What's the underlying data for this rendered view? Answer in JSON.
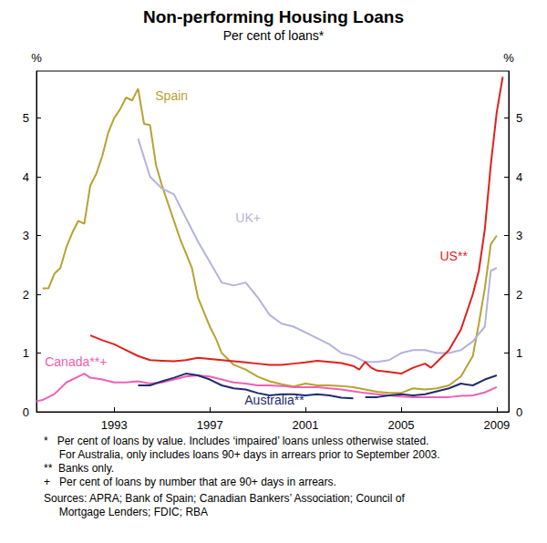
{
  "chart_data": {
    "type": "line",
    "title": "Non-performing Housing Loans",
    "subtitle": "Per cent of loans*",
    "y_label": "%",
    "xlim": [
      1989.75,
      2009.5
    ],
    "xticks": [
      1993,
      1997,
      2001,
      2005,
      2009
    ],
    "ylim": [
      0,
      5.8
    ],
    "yticks": [
      0,
      1,
      2,
      3,
      4,
      5
    ],
    "grid": false,
    "series": [
      {
        "name": "Spain",
        "color": "#b8a232",
        "x": [
          1990,
          1990.25,
          1990.5,
          1990.75,
          1991,
          1991.25,
          1991.5,
          1991.75,
          1992,
          1992.25,
          1992.5,
          1992.75,
          1993,
          1993.25,
          1993.5,
          1993.75,
          1994,
          1994.25,
          1994.5,
          1994.75,
          1995,
          1995.25,
          1995.5,
          1995.75,
          1996,
          1996.25,
          1996.5,
          1996.75,
          1997,
          1997.25,
          1997.5,
          1997.75,
          1998,
          1998.5,
          1999,
          1999.5,
          2000,
          2000.5,
          2001,
          2001.5,
          2002,
          2002.5,
          2003,
          2003.5,
          2004,
          2004.5,
          2005,
          2005.5,
          2006,
          2006.5,
          2007,
          2007.5,
          2008,
          2008.25,
          2008.5,
          2008.75,
          2009
        ],
        "values": [
          2.1,
          2.1,
          2.35,
          2.45,
          2.8,
          3.05,
          3.25,
          3.2,
          3.85,
          4.05,
          4.35,
          4.75,
          5.0,
          5.15,
          5.35,
          5.3,
          5.5,
          4.9,
          4.88,
          4.2,
          3.85,
          3.55,
          3.25,
          2.95,
          2.7,
          2.45,
          1.95,
          1.7,
          1.45,
          1.25,
          1.0,
          0.9,
          0.8,
          0.72,
          0.6,
          0.52,
          0.47,
          0.43,
          0.48,
          0.45,
          0.45,
          0.44,
          0.42,
          0.38,
          0.34,
          0.32,
          0.32,
          0.4,
          0.38,
          0.4,
          0.45,
          0.6,
          0.95,
          1.5,
          2.1,
          2.85,
          3.0
        ]
      },
      {
        "name": "UK+",
        "color": "#b3b3e0",
        "x": [
          1994,
          1994.5,
          1995,
          1995.5,
          1996,
          1996.5,
          1997,
          1997.5,
          1998,
          1998.5,
          1999,
          1999.5,
          2000,
          2000.5,
          2001,
          2001.5,
          2002,
          2002.5,
          2003,
          2003.5,
          2004,
          2004.5,
          2005,
          2005.5,
          2006,
          2006.5,
          2007,
          2007.5,
          2008,
          2008.5,
          2008.75,
          2009
        ],
        "values": [
          4.65,
          4.0,
          3.8,
          3.7,
          3.3,
          2.9,
          2.55,
          2.2,
          2.15,
          2.2,
          1.95,
          1.65,
          1.5,
          1.45,
          1.35,
          1.25,
          1.15,
          1.0,
          0.95,
          0.85,
          0.85,
          0.88,
          1.0,
          1.05,
          1.05,
          1.0,
          1.0,
          1.05,
          1.2,
          1.45,
          2.4,
          2.45
        ]
      },
      {
        "name": "US**",
        "color": "#e0201c",
        "x": [
          1992,
          1992.5,
          1993,
          1993.5,
          1994,
          1994.5,
          1995,
          1995.5,
          1996,
          1996.5,
          1997,
          1997.5,
          1998,
          1998.5,
          1999,
          1999.5,
          2000,
          2000.5,
          2001,
          2001.5,
          2002,
          2002.5,
          2003,
          2003.25,
          2003.5,
          2003.75,
          2004,
          2004.5,
          2005,
          2005.5,
          2006,
          2006.25,
          2006.5,
          2007,
          2007.5,
          2008,
          2008.25,
          2008.5,
          2008.75,
          2009,
          2009.25
        ],
        "values": [
          1.3,
          1.22,
          1.15,
          1.05,
          0.95,
          0.88,
          0.87,
          0.86,
          0.88,
          0.92,
          0.9,
          0.88,
          0.86,
          0.84,
          0.82,
          0.8,
          0.8,
          0.82,
          0.84,
          0.87,
          0.85,
          0.83,
          0.78,
          0.72,
          0.85,
          0.75,
          0.7,
          0.68,
          0.65,
          0.75,
          0.82,
          0.75,
          0.85,
          1.05,
          1.4,
          2.0,
          2.4,
          3.1,
          4.2,
          5.1,
          5.7
        ]
      },
      {
        "name": "Canada**+",
        "color": "#f060b4",
        "x": [
          1989.75,
          1990,
          1990.5,
          1991,
          1991.5,
          1991.75,
          1992,
          1992.5,
          1993,
          1993.5,
          1994,
          1994.5,
          1995,
          1995.5,
          1996,
          1996.5,
          1997,
          1997.5,
          1998,
          1998.5,
          1999,
          1999.5,
          2000,
          2000.5,
          2001,
          2001.5,
          2002,
          2002.5,
          2003,
          2003.5,
          2004,
          2004.5,
          2005,
          2005.5,
          2006,
          2006.5,
          2007,
          2007.5,
          2008,
          2008.5,
          2009
        ],
        "values": [
          0.18,
          0.2,
          0.3,
          0.5,
          0.6,
          0.65,
          0.58,
          0.55,
          0.5,
          0.5,
          0.52,
          0.48,
          0.5,
          0.55,
          0.6,
          0.62,
          0.6,
          0.55,
          0.5,
          0.48,
          0.45,
          0.45,
          0.44,
          0.42,
          0.42,
          0.42,
          0.4,
          0.38,
          0.35,
          0.32,
          0.3,
          0.28,
          0.26,
          0.25,
          0.25,
          0.25,
          0.25,
          0.27,
          0.28,
          0.33,
          0.42
        ]
      },
      {
        "name": "Australia**",
        "color": "#1f2d6e",
        "x": [
          1994,
          1994.5,
          1995,
          1995.5,
          1996,
          1996.5,
          1997,
          1997.5,
          1998,
          1998.5,
          1999,
          1999.5,
          2000,
          2000.5,
          2001,
          2001.5,
          2002,
          2002.5,
          2003,
          2003.25,
          2003.5,
          2004,
          2004.5,
          2005,
          2005.5,
          2006,
          2006.5,
          2007,
          2007.5,
          2008,
          2008.5,
          2009
        ],
        "values": [
          0.45,
          0.45,
          0.52,
          0.58,
          0.65,
          0.62,
          0.55,
          0.45,
          0.4,
          0.38,
          0.32,
          0.28,
          0.3,
          0.3,
          0.28,
          0.3,
          0.28,
          0.24,
          0.23,
          null,
          0.25,
          0.25,
          0.28,
          0.3,
          0.28,
          0.3,
          0.35,
          0.4,
          0.48,
          0.45,
          0.55,
          0.62
        ]
      }
    ],
    "annotations": [
      {
        "series": "Spain",
        "x": 1995.4,
        "y": 5.38
      },
      {
        "series": "UK+",
        "x": 1998.6,
        "y": 3.3
      },
      {
        "series": "US**",
        "x": 2007.2,
        "y": 2.65
      },
      {
        "series": "Canada**+",
        "x": 1991.4,
        "y": 0.85
      },
      {
        "series": "Australia**",
        "x": 1999.7,
        "y": 0.2
      }
    ],
    "notes": [
      "*   Per cent of loans by value. Includes ‘impaired’ loans unless otherwise stated.",
      "     For Australia, only includes loans 90+ days in arrears prior to September 2003.",
      "**  Banks only.",
      "+   Per cent of loans by number that are 90+ days in arrears.",
      "Sources: APRA; Bank of Spain; Canadian Bankers’ Association; Council of",
      "     Mortgage Lenders; FDIC; RBA"
    ]
  }
}
